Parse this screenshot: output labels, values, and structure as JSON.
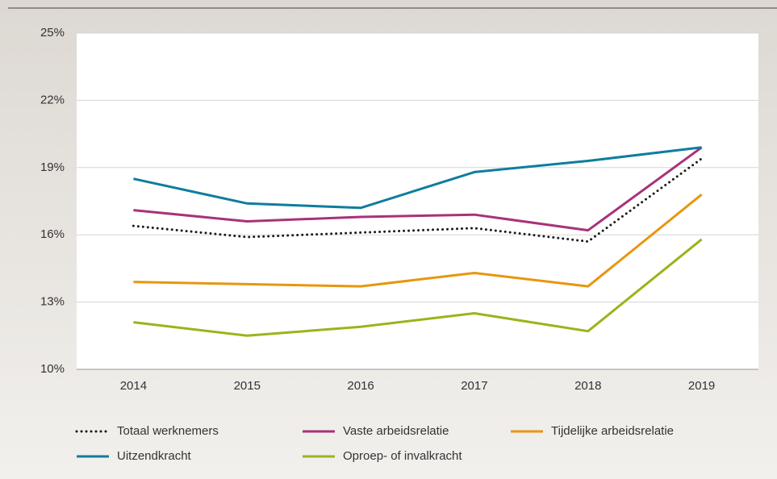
{
  "chart_data": {
    "type": "line",
    "categories": [
      "2014",
      "2015",
      "2016",
      "2017",
      "2018",
      "2019"
    ],
    "series": [
      {
        "name": "Totaal werknemers",
        "color": "#1a1a1a",
        "dash": "dotted",
        "values": [
          16.4,
          15.9,
          16.1,
          16.3,
          15.7,
          19.4
        ]
      },
      {
        "name": "Vaste arbeidsrelatie",
        "color": "#a8327a",
        "values": [
          17.1,
          16.6,
          16.8,
          16.9,
          16.2,
          19.9
        ]
      },
      {
        "name": "Tijdelijke arbeidsrelatie",
        "color": "#e8960f",
        "values": [
          13.9,
          13.8,
          13.7,
          14.3,
          13.7,
          17.8
        ]
      },
      {
        "name": "Uitzendkracht",
        "color": "#0f7d9e",
        "values": [
          18.5,
          17.4,
          17.2,
          18.8,
          19.3,
          19.9
        ]
      },
      {
        "name": "Oproep- of invalkracht",
        "color": "#9ab41c",
        "values": [
          12.1,
          11.5,
          11.9,
          12.5,
          11.7,
          15.8
        ]
      }
    ],
    "ylim": [
      10,
      25
    ],
    "yticks": [
      {
        "value": 10,
        "label": "10%"
      },
      {
        "value": 13,
        "label": "13%"
      },
      {
        "value": 16,
        "label": "16%"
      },
      {
        "value": 19,
        "label": "19%"
      },
      {
        "value": 22,
        "label": "22%"
      },
      {
        "value": 25,
        "label": "25%"
      }
    ],
    "grid": true
  }
}
